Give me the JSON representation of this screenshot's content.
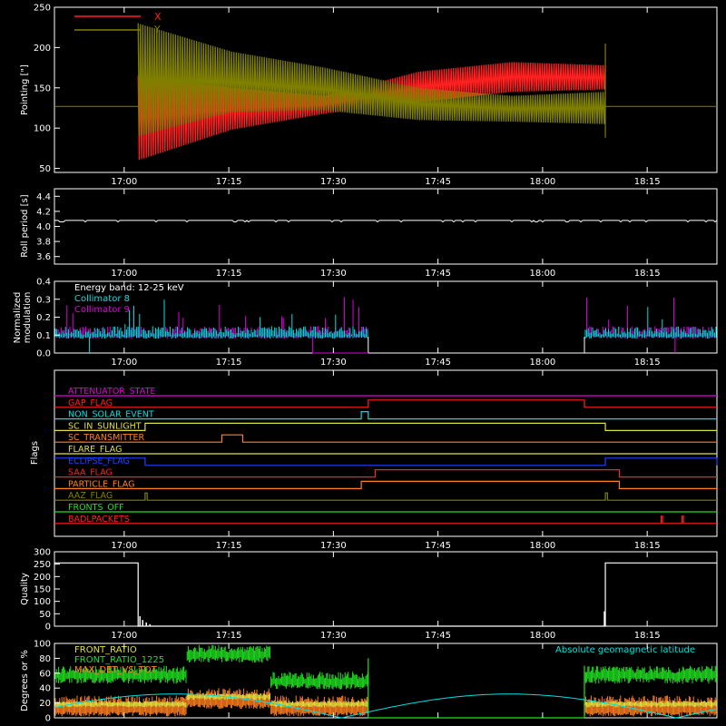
{
  "colors": {
    "background": "#000000",
    "axis": "#ffffff",
    "red": "#ff2020",
    "olive": "#808000",
    "cyan": "#00e0e0",
    "magenta": "#e000e0",
    "green": "#20e020",
    "orange": "#ff8020",
    "yellow": "#e0e040",
    "blue": "#2040ff",
    "white": "#ffffff"
  },
  "chart_data": [
    {
      "type": "line",
      "panel": "pointing",
      "ylabel": "Pointing [\"]",
      "ylim": [
        45,
        250
      ],
      "yticks": [
        "50",
        "100",
        "150",
        "200",
        "250"
      ],
      "xtick_labels": [
        "17:00",
        "17:15",
        "17:30",
        "17:45",
        "18:00",
        "18:15"
      ],
      "legend": [
        "X",
        "Y"
      ],
      "series": [
        {
          "name": "X",
          "color": "red",
          "start": "17:02",
          "end": "18:09",
          "envelope_top": [
            165,
            150,
            140,
            170,
            182,
            178
          ],
          "envelope_bottom": [
            60,
            98,
            118,
            132,
            145,
            148
          ]
        },
        {
          "name": "Y",
          "color": "olive",
          "start": "17:02",
          "end": "18:09",
          "envelope_top": [
            230,
            195,
            175,
            150,
            140,
            145
          ],
          "envelope_bottom": [
            90,
            120,
            122,
            110,
            108,
            105
          ]
        }
      ],
      "baseline": 127
    },
    {
      "type": "line",
      "panel": "roll",
      "ylabel": "Roll period [s]",
      "ylim": [
        3.5,
        4.5
      ],
      "yticks": [
        "3.6",
        "3.8",
        "4.0",
        "4.2",
        "4.4"
      ],
      "xtick_labels": [
        "17:00",
        "17:15",
        "17:30",
        "17:45",
        "18:00",
        "18:15"
      ],
      "series": [
        {
          "name": "",
          "color": "white",
          "value": 4.08
        }
      ]
    },
    {
      "type": "line",
      "panel": "modulation",
      "ylabel_line1": "Normalized",
      "ylabel_line2": "modulation",
      "ylim": [
        0,
        0.4
      ],
      "yticks": [
        "0.0",
        "0.1",
        "0.2",
        "0.3",
        "0.4"
      ],
      "xtick_labels": [
        "17:00",
        "17:15",
        "17:30",
        "17:45",
        "18:00",
        "18:15"
      ],
      "legend_title": "Energy band: 12-25 keV",
      "legend": [
        "Collimator 8",
        "Collimator 9"
      ],
      "gap": [
        "17:35",
        "18:06"
      ],
      "level": 0.1
    },
    {
      "type": "line",
      "panel": "flags",
      "ylabel": "Flags",
      "xtick_labels": [
        "17:00",
        "17:15",
        "17:30",
        "17:45",
        "18:00",
        "18:15"
      ],
      "flags": [
        {
          "name": "ATTENUATOR_STATE",
          "color": "magenta",
          "high": []
        },
        {
          "name": "GAP_FLAG",
          "color": "red",
          "high": [
            [
              "17:35",
              "18:06"
            ]
          ]
        },
        {
          "name": "NON_SOLAR_EVENT",
          "color": "cyan",
          "high": [
            [
              "17:34",
              "17:35"
            ]
          ]
        },
        {
          "name": "SC_IN_SUNLIGHT",
          "color": "yellow",
          "high": [
            [
              "17:03",
              "18:09"
            ]
          ]
        },
        {
          "name": "SC_TRANSMITTER",
          "color": "orange",
          "high": [
            [
              "17:14",
              "17:17"
            ]
          ]
        },
        {
          "name": "FLARE_FLAG",
          "color": "yellow",
          "high": []
        },
        {
          "name": "ECLIPSE_FLAG",
          "color": "blue",
          "high": [
            [
              "16:50",
              "17:03"
            ],
            [
              "18:09",
              "18:25"
            ]
          ]
        },
        {
          "name": "SAA_FLAG",
          "color": "red",
          "high": [
            [
              "17:36",
              "18:11"
            ]
          ]
        },
        {
          "name": "PARTICLE_FLAG",
          "color": "orange",
          "high": [
            [
              "17:34",
              "18:11"
            ]
          ]
        },
        {
          "name": "AAZ_FLAG",
          "color": "olive",
          "high": [
            [
              "17:03",
              "17:03.3"
            ],
            [
              "18:09",
              "18:09.3"
            ]
          ]
        },
        {
          "name": "FRONTS_OFF",
          "color": "green",
          "high": []
        },
        {
          "name": "BADLPACKETS",
          "color": "red",
          "high": [
            [
              "18:17",
              "18:17.2"
            ],
            [
              "18:20",
              "18:20.2"
            ]
          ]
        }
      ]
    },
    {
      "type": "line",
      "panel": "quality",
      "ylabel": "Quality",
      "ylim": [
        0,
        300
      ],
      "yticks": [
        "0",
        "50",
        "100",
        "150",
        "200",
        "250",
        "300"
      ],
      "xtick_labels": [
        "17:00",
        "17:15",
        "17:30",
        "17:45",
        "18:00",
        "18:15"
      ],
      "high_value": 255,
      "high_spans": [
        [
          "16:50",
          "17:02"
        ],
        [
          "18:09",
          "18:25"
        ]
      ]
    },
    {
      "type": "line",
      "panel": "ratios",
      "ylabel": "Degrees or %",
      "ylim": [
        0,
        100
      ],
      "yticks": [
        "0",
        "20",
        "40",
        "60",
        "80",
        "100"
      ],
      "xtick_labels": [
        "17:00",
        "17:15",
        "17:30",
        "17:45",
        "18:00",
        "18:15"
      ],
      "legend": [
        "FRONT_RATIO",
        "FRONT_RATIO_1225",
        "MAX_DET_VS_TOT"
      ],
      "legend_right": "Absolute geomagnetic latitude",
      "gap": [
        "17:35",
        "18:06"
      ]
    }
  ]
}
